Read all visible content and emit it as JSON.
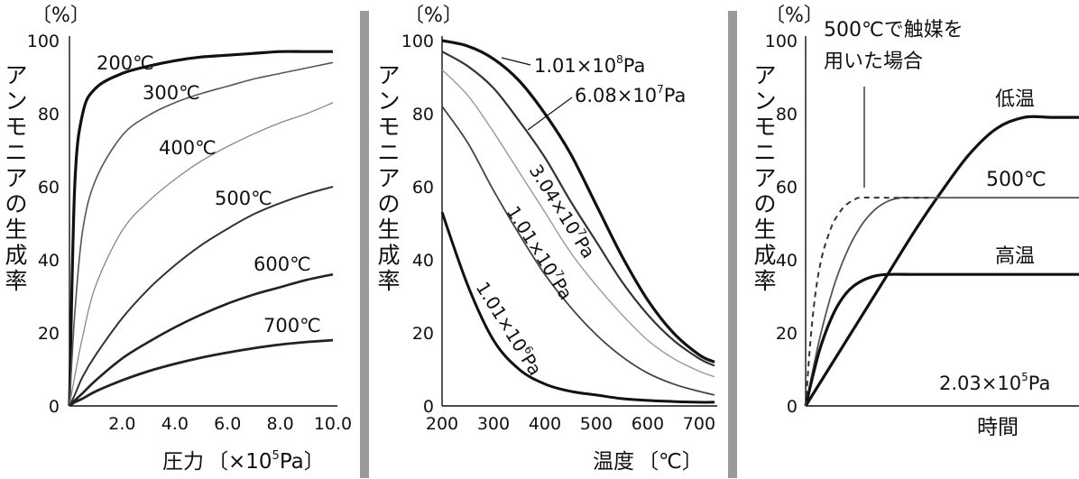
{
  "chart_data": [
    {
      "type": "line",
      "unit_label": "〔%〕",
      "ylabel": "アンモニアの生成率",
      "xlabel_main": "圧力",
      "xlabel_unit_pre": "〔×10",
      "xlabel_unit_sup": "5",
      "xlabel_unit_post": "Pa",
      "xlim": [
        0,
        10
      ],
      "ylim": [
        0,
        100
      ],
      "yticks": [
        "0",
        "20",
        "40",
        "60",
        "80",
        "100"
      ],
      "xticks": [
        "2.0",
        "4.0",
        "6.0",
        "8.0",
        "10.0"
      ],
      "x": [
        0,
        0.2,
        0.5,
        1,
        2,
        3,
        4,
        5,
        6,
        7,
        8,
        9,
        10
      ],
      "series": [
        {
          "name": "200℃",
          "values": [
            0,
            60,
            80,
            87,
            91,
            93,
            94.5,
            95.5,
            96,
            96.5,
            97,
            97,
            97
          ]
        },
        {
          "name": "300℃",
          "values": [
            0,
            25,
            48,
            62,
            74,
            79.5,
            83,
            85.5,
            87.5,
            89.5,
            91,
            92.5,
            94
          ]
        },
        {
          "name": "400℃",
          "values": [
            0,
            8,
            19,
            33,
            48,
            56,
            62,
            67,
            71,
            74.5,
            77.5,
            80,
            83
          ]
        },
        {
          "name": "500℃",
          "values": [
            0,
            3,
            8,
            14,
            24,
            32,
            38.5,
            44,
            48.5,
            52.5,
            55.5,
            58,
            60
          ]
        },
        {
          "name": "600℃",
          "values": [
            0,
            1.5,
            3.5,
            7,
            13,
            17.5,
            21.5,
            25,
            28,
            30.5,
            32.5,
            34.5,
            36
          ]
        },
        {
          "name": "700℃",
          "values": [
            0,
            1,
            2,
            4,
            7,
            9.5,
            11.5,
            13.2,
            14.6,
            15.8,
            16.8,
            17.5,
            18
          ]
        }
      ]
    },
    {
      "type": "line",
      "unit_label": "〔%〕",
      "ylabel": "アンモニアの生成率",
      "xlabel_main": "温度",
      "xlabel_unit": "〔℃〕",
      "xlim": [
        200,
        730
      ],
      "ylim": [
        0,
        100
      ],
      "yticks": [
        "0",
        "20",
        "40",
        "60",
        "80",
        "100"
      ],
      "xticks": [
        "200",
        "300",
        "400",
        "500",
        "600",
        "700"
      ],
      "x": [
        200,
        250,
        300,
        350,
        400,
        450,
        500,
        550,
        600,
        650,
        700,
        730
      ],
      "series": [
        {
          "name_pre": "1.01×10",
          "name_sup": "8",
          "name_post": "Pa",
          "values": [
            100,
            98.5,
            95,
            89,
            80,
            69,
            55,
            41,
            29,
            20,
            14,
            12
          ]
        },
        {
          "name_pre": "6.08×10",
          "name_sup": "7",
          "name_post": "Pa",
          "values": [
            97,
            93,
            87,
            78,
            68,
            56,
            45,
            34,
            25,
            18,
            13,
            11
          ]
        },
        {
          "name_pre": "3.04×10",
          "name_sup": "7",
          "name_post": "Pa",
          "values": [
            92,
            85,
            75,
            64,
            53,
            42,
            33,
            25,
            18,
            13,
            9.5,
            8
          ]
        },
        {
          "name_pre": "1.01×10",
          "name_sup": "7",
          "name_post": "Pa",
          "values": [
            82,
            72,
            59,
            47,
            36,
            27,
            19.5,
            13.5,
            9,
            6,
            4,
            3
          ]
        },
        {
          "name_pre": "1.01×10",
          "name_sup": "6",
          "name_post": "Pa",
          "values": [
            53,
            33,
            18,
            10,
            6,
            4,
            3,
            2,
            1.5,
            1.2,
            1,
            1
          ]
        }
      ]
    },
    {
      "type": "line",
      "unit_label": "〔%〕",
      "ylabel": "アンモニアの生成率",
      "xlabel": "時間",
      "ylim": [
        0,
        100
      ],
      "yticks": [
        "0",
        "20",
        "40",
        "60",
        "80",
        "100"
      ],
      "catalyst_note": [
        "500℃で触媒を",
        "用いた場合"
      ],
      "pressure_pre": "2.03×10",
      "pressure_sup": "5",
      "pressure_post": "Pa",
      "series": [
        {
          "name": "低温",
          "style": "solid-thick",
          "x": [
            0,
            10,
            20,
            30,
            40,
            50,
            60,
            70,
            80,
            90,
            100
          ],
          "values": [
            0,
            12,
            24,
            36,
            48,
            59,
            69,
            76,
            79,
            79,
            79
          ]
        },
        {
          "name": "500℃",
          "style": "solid",
          "x": [
            0,
            5,
            10,
            15,
            20,
            25,
            30,
            35,
            40,
            50,
            70,
            100
          ],
          "values": [
            0,
            18,
            32,
            42,
            49,
            53.5,
            56,
            57,
            57,
            57,
            57,
            57
          ]
        },
        {
          "name": "高温",
          "style": "solid-thick",
          "x": [
            0,
            5,
            10,
            15,
            20,
            25,
            30,
            40,
            60,
            100
          ],
          "values": [
            0,
            15,
            25,
            31,
            34,
            35.5,
            36,
            36,
            36,
            36
          ]
        },
        {
          "name": "",
          "style": "dashed",
          "x": [
            0,
            2,
            4,
            6,
            8,
            10,
            12,
            14,
            16,
            18,
            20,
            30,
            45
          ],
          "values": [
            0,
            20,
            33,
            41,
            46,
            50,
            52.5,
            54.5,
            55.7,
            56.5,
            57,
            57,
            57
          ]
        }
      ]
    }
  ]
}
